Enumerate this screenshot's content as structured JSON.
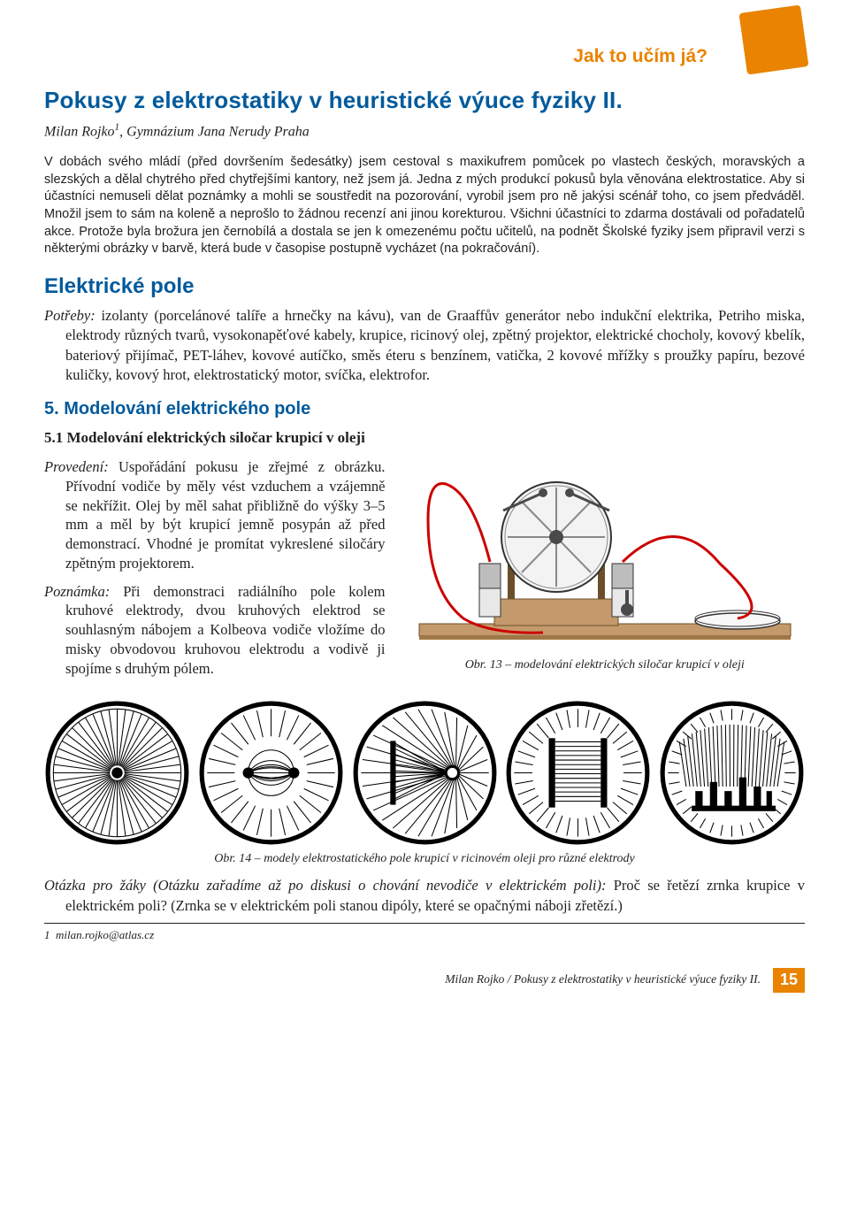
{
  "colors": {
    "orange": "#e98300",
    "blue": "#005a9c",
    "text": "#231f20",
    "bg": "#ffffff",
    "wood": "#c49a6c",
    "wood_dark": "#a07845",
    "red_wire": "#cc0000",
    "grey_metal": "#bdbdbd",
    "dark_grey": "#4a4a4a",
    "glass": "#e8e8e8"
  },
  "header": {
    "section_label": "Jak to učím já?",
    "title": "Pokusy z elektrostatiky v heuristické výuce fyziky II.",
    "author_prefix": "Milan Rojko",
    "author_sup": "1",
    "author_affil": ", Gymnázium Jana Nerudy Praha"
  },
  "intro": "V dobách svého mládí (před dovršením šedesátky) jsem cestoval s maxikufrem pomůcek po vlastech českých, moravských a slezských a dělal chytrého před chytřejšími kantory, než jsem já. Jedna z mých produkcí pokusů byla věnována elektrostatice. Aby si účastníci nemuseli dělat poznámky a mohli se soustředit na pozorování, vyrobil jsem pro ně jakýsi scénář toho, co jsem předváděl. Množil jsem to sám na koleně a neprošlo to žádnou recenzí ani jinou korekturou. Všichni účastníci to zdarma dostávali od pořadatelů akce. Protože byla brožura jen černobílá a dostala se jen k omezenému počtu učitelů, na podnět Školské fyziky jsem připravil verzi s některými obrázky v barvě, která bude v časopise postupně vycházet (na pokračování).",
  "section1": {
    "heading": "Elektrické pole",
    "potreby_label": "Potřeby:",
    "potreby_text": " izolanty (porcelánové talíře a hrnečky na kávu), van de Graaffův generátor nebo indukční elektrika, Petriho miska, elektrody různých tvarů, vysokonapěťové kabely, krupice, ricinový olej, zpětný projektor, elektrické chocholy, kovový kbelík, bateriový přijímač, PET-láhev, kovové autíčko, směs éteru s benzínem, vatička, 2 kovové mřížky s proužky papíru, bezové kuličky, kovový hrot, elektrostatický motor, svíčka, elektrofor."
  },
  "section5": {
    "heading": "5. Modelování elektrického pole",
    "sub": "5.1 Modelování elektrických siločar krupicí v oleji",
    "provedeni_label": "Provedení:",
    "provedeni_text": " Uspořádání pokusu je zřejmé z obrázku. Přívodní vodiče by měly vést vzduchem a vzájemně se nekřížit. Olej by měl sahat přibližně do výšky 3–5 mm a měl by být krupicí jemně posypán až před demonstrací. Vhodné je promítat vykreslené siločáry zpětným projektorem.",
    "poznamka_label": "Poznámka:",
    "poznamka_text": " Při demonstraci radiálního pole kolem kruhové elektrody, dvou kruhových elektrod se souhlasným nábojem a Kolbeova vodiče vložíme do misky obvodovou kruhovou elektrodu a vodivě ji spojíme s druhým pólem."
  },
  "fig13_caption": "Obr. 13 – modelování elektrických siločar krupicí v oleji",
  "fig14_caption": "Obr. 14 – modely elektrostatického pole krupicí v ricinovém oleji pro různé elektrody",
  "question": {
    "label": "Otázka pro žáky (Otázku zařadíme až po diskusi o chování nevodiče v elektrickém poli):",
    "text": " Proč se řetězí zrnka krupice v elektrickém poli? (Zrnka se v elektrickém poli stanou dipóly, které se opačnými náboji zřetězí.)"
  },
  "footnote": {
    "num": "1",
    "text": "milan.rojko@atlas.cz"
  },
  "footer": {
    "text": "Milan Rojko / Pokusy z elektrostatiky v heuristické výuce fyziky II.",
    "page": "15"
  },
  "dishes": [
    {
      "type": "radial-point"
    },
    {
      "type": "two-points"
    },
    {
      "type": "plate-point"
    },
    {
      "type": "two-plates"
    },
    {
      "type": "comb"
    }
  ]
}
